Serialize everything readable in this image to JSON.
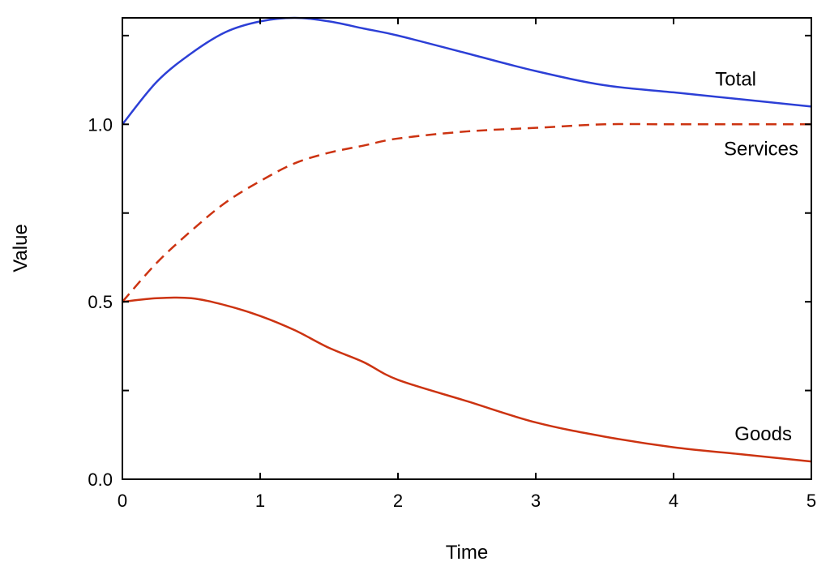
{
  "chart_data": {
    "type": "line",
    "xlabel": "Time",
    "ylabel": "Value",
    "xlim": [
      0,
      5
    ],
    "ylim": [
      0,
      1.3
    ],
    "x_ticks": [
      0,
      1,
      2,
      3,
      4,
      5
    ],
    "x_tick_labels": [
      "0",
      "1",
      "2",
      "3",
      "4",
      "5"
    ],
    "y_ticks": [
      0,
      0.25,
      0.5,
      0.75,
      1.0,
      1.25
    ],
    "y_tick_labels": [
      "0.0",
      "",
      "0.5",
      "",
      "1.0",
      ""
    ],
    "grid": false,
    "legend": "none",
    "series": [
      {
        "name": "Total",
        "color": "#2c3fd6",
        "dash": "solid",
        "x": [
          0,
          0.25,
          0.5,
          0.75,
          1,
          1.25,
          1.5,
          1.75,
          2,
          2.5,
          3,
          3.5,
          4,
          4.5,
          5
        ],
        "y": [
          1.0,
          1.12,
          1.2,
          1.26,
          1.29,
          1.3,
          1.29,
          1.27,
          1.25,
          1.2,
          1.15,
          1.11,
          1.09,
          1.07,
          1.05
        ]
      },
      {
        "name": "Services",
        "color": "#cc3311",
        "dash": "dashed",
        "x": [
          0,
          0.25,
          0.5,
          0.75,
          1,
          1.25,
          1.5,
          1.75,
          2,
          2.5,
          3,
          3.5,
          4,
          4.5,
          5
        ],
        "y": [
          0.5,
          0.61,
          0.7,
          0.78,
          0.84,
          0.89,
          0.92,
          0.94,
          0.96,
          0.98,
          0.99,
          1.0,
          1.0,
          1.0,
          1.0
        ]
      },
      {
        "name": "Goods",
        "color": "#cc3311",
        "dash": "solid",
        "x": [
          0,
          0.25,
          0.5,
          0.75,
          1,
          1.25,
          1.5,
          1.75,
          2,
          2.5,
          3,
          3.5,
          4,
          4.5,
          5
        ],
        "y": [
          0.5,
          0.51,
          0.51,
          0.49,
          0.46,
          0.42,
          0.37,
          0.33,
          0.28,
          0.22,
          0.16,
          0.12,
          0.09,
          0.07,
          0.05
        ]
      }
    ]
  }
}
